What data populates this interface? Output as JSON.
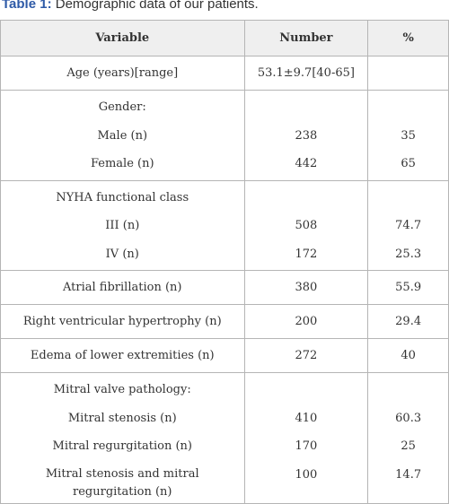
{
  "caption": {
    "label": "Table 1:",
    "text": "Demographic data of our patients."
  },
  "headers": {
    "variable": "Variable",
    "number": "Number",
    "percent": "%"
  },
  "rows": {
    "age": {
      "variable": "Age (years)[range]",
      "number": "53.1±9.7[40-65]",
      "percent": ""
    },
    "gender": {
      "title": "Gender:",
      "items": [
        {
          "label": "Male (n)",
          "number": "238",
          "percent": "35"
        },
        {
          "label": "Female (n)",
          "number": "442",
          "percent": "65"
        }
      ]
    },
    "nyha": {
      "title": "NYHA functional class",
      "items": [
        {
          "label": "III (n)",
          "number": "508",
          "percent": "74.7"
        },
        {
          "label": "IV (n)",
          "number": "172",
          "percent": "25.3"
        }
      ]
    },
    "af": {
      "variable": "Atrial fibrillation (n)",
      "number": "380",
      "percent": "55.9"
    },
    "rvh": {
      "variable": "Right ventricular hypertrophy (n)",
      "number": "200",
      "percent": "29.4"
    },
    "edema": {
      "variable": "Edema of lower extremities (n)",
      "number": "272",
      "percent": "40"
    },
    "mitral": {
      "title": "Mitral valve pathology:",
      "items": [
        {
          "label": "Mitral stenosis (n)",
          "number": "410",
          "percent": "60.3"
        },
        {
          "label": "Mitral regurgitation (n)",
          "number": "170",
          "percent": "25"
        },
        {
          "label": "Mitral stenosis and mitral regurgitation (n)",
          "number": "100",
          "percent": "14.7"
        }
      ]
    }
  }
}
